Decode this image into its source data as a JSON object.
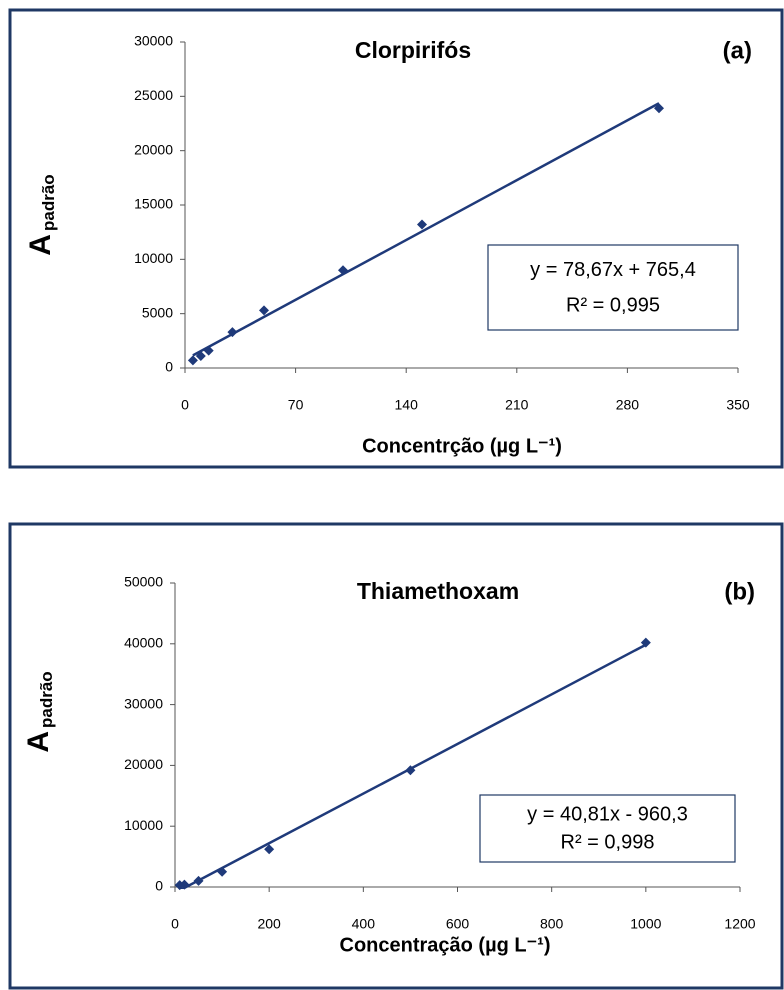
{
  "chart_data": [
    {
      "type": "scatter",
      "title": "Clorpirifós",
      "panel_label": "(a)",
      "y_label": "A",
      "y_label_sub": "padrão",
      "x_label": "Concentrção (µg L⁻¹)",
      "equation": "y = 78,67x + 765,4",
      "r_squared": "R² = 0,995",
      "x": [
        5,
        10,
        15,
        30,
        50,
        100,
        150,
        300
      ],
      "values": [
        700,
        1100,
        1600,
        3300,
        5300,
        9000,
        13200,
        23900
      ],
      "trendline": {
        "slope": 78.67,
        "intercept": 765.4
      },
      "color": "#1f3a7a",
      "xlim": [
        0,
        350
      ],
      "xticks": [
        0,
        70,
        140,
        210,
        280,
        350
      ],
      "ylim": [
        0,
        30000
      ],
      "yticks": [
        0,
        5000,
        10000,
        15000,
        20000,
        25000,
        30000
      ]
    },
    {
      "type": "scatter",
      "title": "Thiamethoxam",
      "panel_label": "(b)",
      "y_label": "A",
      "y_label_sub": "padrão",
      "x_label": "Concentração (µg L⁻¹)",
      "equation": "y = 40,81x - 960,3",
      "r_squared": "R² = 0,998",
      "x": [
        10,
        20,
        50,
        100,
        200,
        500,
        1000
      ],
      "values": [
        300,
        400,
        1000,
        2500,
        6200,
        19200,
        40200
      ],
      "trendline": {
        "slope": 40.81,
        "intercept": -960.3
      },
      "color": "#1f3a7a",
      "xlim": [
        0,
        1200
      ],
      "xticks": [
        0,
        200,
        400,
        600,
        800,
        1000,
        1200
      ],
      "ylim": [
        0,
        50000
      ],
      "yticks": [
        0,
        10000,
        20000,
        30000,
        40000,
        50000
      ]
    }
  ]
}
